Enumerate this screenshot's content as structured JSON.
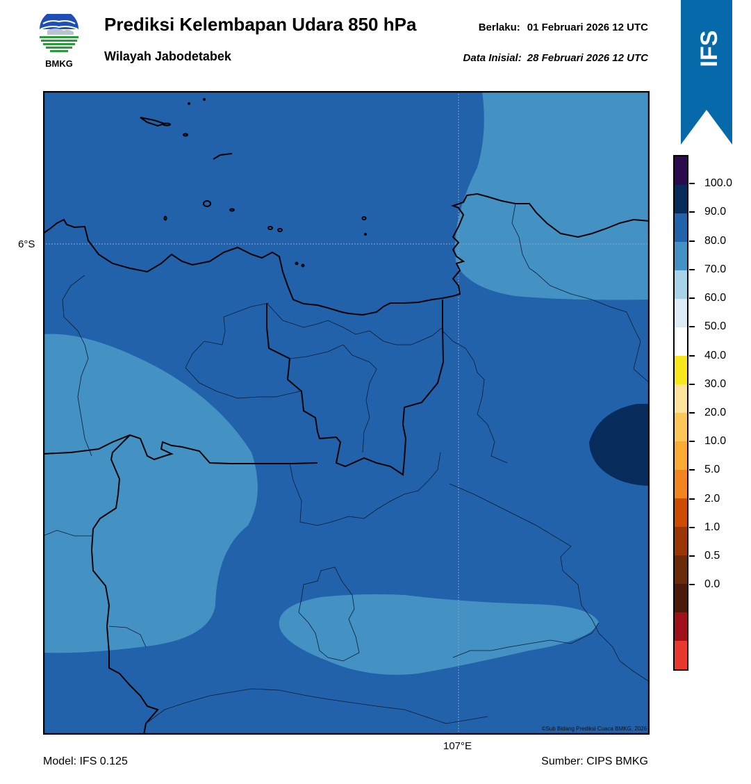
{
  "header": {
    "logo_text": "BMKG",
    "title": "Prediksi Kelembapan Udara 850 hPa",
    "subtitle": "Wilayah Jabodetabek",
    "valid_label": "Berlaku:",
    "valid_value": "01 Februari 2026 12 UTC",
    "init_label": "Data Inisial:",
    "init_value": "28 Februari 2026 12 UTC"
  },
  "banner": {
    "text": "IFS",
    "color": "#0669aa"
  },
  "map": {
    "lat_label": "6°S",
    "lon_label": "107°E",
    "credit": "©Sub Bidang Prediksi Cuaca BMKG, 2026",
    "fill_colors": {
      "background": "#2162ab",
      "lighter": "#4392c3",
      "darker": "#072c5c"
    }
  },
  "footer": {
    "model": "Model: IFS 0.125",
    "source": "Sumber: CIPS BMKG"
  },
  "colorbar": {
    "colors": [
      "#2b0a4e",
      "#072c5c",
      "#2162ab",
      "#4392c3",
      "#a6d3e8",
      "#dcebf6",
      "#ffffff",
      "#f8e71c",
      "#fde39b",
      "#fdc659",
      "#fbaa34",
      "#f1851f",
      "#cc4c02",
      "#9a3505",
      "#6b2a0a",
      "#4b1a0a",
      "#a0101a",
      "#e8392f"
    ],
    "labels": [
      "100.0",
      "90.0",
      "80.0",
      "70.0",
      "60.0",
      "50.0",
      "40.0",
      "30.0",
      "20.0",
      "10.0",
      "5.0",
      "2.0",
      "1.0",
      "0.5",
      "0.0"
    ]
  }
}
